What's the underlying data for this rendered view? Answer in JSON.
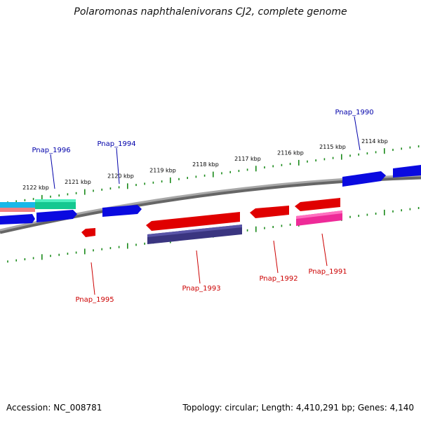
{
  "title": "Polaromonas naphthalenivorans CJ2, complete genome",
  "footer": {
    "accession": "Accession: NC_008781",
    "summary": "Topology: circular; Length: 4,410,291 bp; Genes: 4,140"
  },
  "colors": {
    "backbone": "#888888",
    "tick": "#1a8a1a",
    "forward_label": "#0000aa",
    "reverse_label": "#cc0000"
  },
  "scale_labels": [
    "2122 kbp",
    "2121 kbp",
    "2120 kbp",
    "2119 kbp",
    "2118 kbp",
    "2117 kbp",
    "2116 kbp",
    "2115 kbp",
    "2114 kbp"
  ],
  "forward_genes": [
    {
      "label": "Pnap_1996",
      "color": "#14c890"
    },
    {
      "label": "Pnap_1994",
      "color": "#0a0ae0"
    },
    {
      "label": "Pnap_1990",
      "color": "#0a0ae0"
    }
  ],
  "reverse_genes": [
    {
      "label": "Pnap_1995",
      "color": "#e00000"
    },
    {
      "label": "Pnap_1993",
      "color": "#e00000"
    },
    {
      "label": "Pnap_1992",
      "color": "#e00000"
    },
    {
      "label": "Pnap_1991",
      "color": "#e00000"
    }
  ]
}
